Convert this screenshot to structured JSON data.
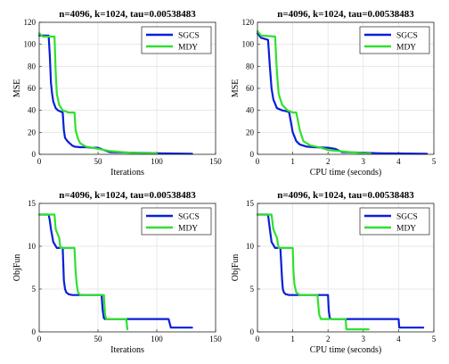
{
  "colors": {
    "SGCS": "#0a1fd6",
    "MDY": "#2fe02f"
  },
  "chart_data": [
    {
      "type": "line",
      "title": "n=4096, k=1024, tau=0.00538483",
      "xlabel": "Iterations",
      "ylabel": "MSE",
      "xlim": [
        0,
        150
      ],
      "ylim": [
        0,
        120
      ],
      "xticks": [
        "0",
        "50",
        "100",
        "150"
      ],
      "yticks": [
        "0",
        "20",
        "40",
        "60",
        "80",
        "100",
        "120"
      ],
      "legend": "top-right",
      "series": [
        {
          "name": "SGCS",
          "x": [
            0,
            8,
            9,
            10,
            11,
            12,
            14,
            16,
            18,
            20,
            21,
            22,
            24,
            26,
            28,
            30,
            35,
            40,
            45,
            50,
            55,
            60,
            80,
            100,
            110,
            130
          ],
          "y": [
            108,
            108,
            90,
            65,
            55,
            48,
            42,
            40,
            39,
            38,
            22,
            15,
            12,
            10,
            8,
            7,
            6.5,
            6.5,
            6,
            6,
            4,
            2,
            1.5,
            1,
            0.8,
            0.6
          ]
        },
        {
          "name": "MDY",
          "x": [
            0,
            3,
            5,
            13,
            14,
            15,
            17,
            20,
            25,
            28,
            30,
            31,
            33,
            35,
            38,
            40,
            45,
            50,
            60,
            70,
            80,
            90,
            100
          ],
          "y": [
            110,
            107,
            107,
            107,
            75,
            55,
            45,
            40,
            38,
            38,
            38,
            22,
            14,
            10,
            8,
            7,
            6,
            5,
            3,
            2,
            1.2,
            0.9,
            0.8
          ]
        }
      ]
    },
    {
      "type": "line",
      "title": "n=4096, k=1024, tau=0.00538483",
      "xlabel": "CPU time (seconds)",
      "ylabel": "MSE",
      "xlim": [
        0,
        5
      ],
      "ylim": [
        0,
        120
      ],
      "xticks": [
        "0",
        "1",
        "2",
        "3",
        "4",
        "5"
      ],
      "yticks": [
        "0",
        "20",
        "40",
        "60",
        "80",
        "100",
        "120"
      ],
      "legend": "top-right",
      "series": [
        {
          "name": "SGCS",
          "x": [
            0,
            0.1,
            0.3,
            0.35,
            0.4,
            0.45,
            0.55,
            0.7,
            0.85,
            0.9,
            1.0,
            1.1,
            1.2,
            1.4,
            1.6,
            2.0,
            2.2,
            2.4,
            3.0,
            3.5,
            4.0,
            4.8
          ],
          "y": [
            110,
            106,
            104,
            80,
            60,
            50,
            42,
            40,
            39,
            38,
            20,
            12,
            9,
            7,
            6.5,
            6,
            5,
            2,
            1.5,
            1,
            0.8,
            0.6
          ]
        },
        {
          "name": "MDY",
          "x": [
            0,
            0.1,
            0.5,
            0.55,
            0.6,
            0.7,
            0.85,
            1.0,
            1.1,
            1.2,
            1.3,
            1.5,
            1.8,
            2.0,
            2.3,
            2.6,
            3.0,
            3.2
          ],
          "y": [
            112,
            108,
            107,
            75,
            55,
            45,
            40,
            38,
            38,
            22,
            12,
            8,
            6,
            4,
            3,
            2,
            1,
            0.8
          ]
        }
      ]
    },
    {
      "type": "line",
      "title": "n=4096, k=1024, tau=0.00538483",
      "xlabel": "Iterations",
      "ylabel": "ObjFun",
      "xlim": [
        0,
        150
      ],
      "ylim": [
        0,
        15
      ],
      "xticks": [
        "0",
        "50",
        "100",
        "150"
      ],
      "yticks": [
        "0",
        "5",
        "10",
        "15"
      ],
      "legend": "top-right",
      "series": [
        {
          "name": "SGCS",
          "x": [
            0,
            8,
            9,
            10,
            12,
            15,
            20,
            21,
            22,
            23,
            25,
            28,
            35,
            53,
            54,
            55,
            56,
            58,
            60,
            80,
            110,
            112,
            130
          ],
          "y": [
            13.7,
            13.7,
            13.0,
            12.0,
            10.5,
            9.8,
            9.8,
            6.0,
            5.0,
            4.6,
            4.4,
            4.3,
            4.3,
            4.3,
            2.5,
            1.6,
            1.5,
            1.5,
            1.5,
            1.5,
            1.5,
            0.5,
            0.5
          ]
        },
        {
          "name": "MDY",
          "x": [
            0,
            13,
            14,
            17,
            18,
            30,
            31,
            32,
            33,
            35,
            40,
            55,
            56,
            57,
            70,
            74,
            75
          ],
          "y": [
            13.7,
            13.7,
            12.0,
            11.0,
            9.8,
            9.8,
            7.0,
            5.5,
            4.6,
            4.3,
            4.3,
            4.3,
            2.0,
            1.5,
            1.5,
            1.5,
            0.3
          ]
        }
      ]
    },
    {
      "type": "line",
      "title": "n=4096, k=1024, tau=0.00538483",
      "xlabel": "CPU time (seconds)",
      "ylabel": "ObjFun",
      "xlim": [
        0,
        5
      ],
      "ylim": [
        0,
        15
      ],
      "xticks": [
        "0",
        "1",
        "2",
        "3",
        "4",
        "5"
      ],
      "yticks": [
        "0",
        "5",
        "10",
        "15"
      ],
      "legend": "top-right",
      "series": [
        {
          "name": "SGCS",
          "x": [
            0,
            0.3,
            0.32,
            0.35,
            0.4,
            0.5,
            0.65,
            0.7,
            0.72,
            0.75,
            0.8,
            0.9,
            1.1,
            2.0,
            2.02,
            2.05,
            2.1,
            2.2,
            3.0,
            4.0,
            4.02,
            4.7
          ],
          "y": [
            13.7,
            13.7,
            13.0,
            12.0,
            10.5,
            9.8,
            9.8,
            6.0,
            5.0,
            4.6,
            4.4,
            4.3,
            4.3,
            4.3,
            2.5,
            1.6,
            1.5,
            1.5,
            1.5,
            1.5,
            0.5,
            0.5
          ]
        },
        {
          "name": "MDY",
          "x": [
            0,
            0.4,
            0.45,
            0.55,
            0.6,
            1.0,
            1.02,
            1.05,
            1.1,
            1.2,
            1.4,
            1.7,
            1.75,
            1.8,
            2.3,
            2.5,
            2.52,
            3.15
          ],
          "y": [
            13.7,
            13.7,
            12.0,
            11.0,
            9.8,
            9.8,
            7.0,
            5.5,
            4.6,
            4.3,
            4.3,
            4.3,
            2.0,
            1.5,
            1.5,
            1.5,
            0.3,
            0.3
          ]
        }
      ]
    }
  ]
}
